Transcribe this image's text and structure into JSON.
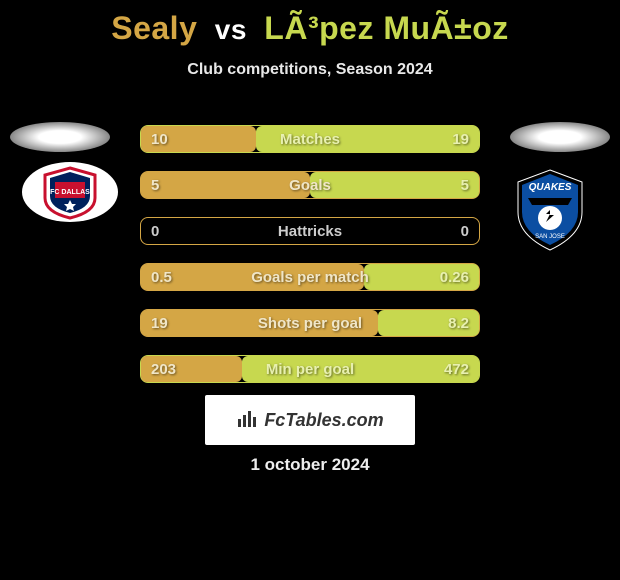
{
  "title": {
    "left": "Sealy",
    "vs": "vs",
    "right": "LÃ³pez MuÃ±oz"
  },
  "subtitle": "Club competitions, Season 2024",
  "colors": {
    "left": "#d4a645",
    "right": "#c7d84f",
    "left_border": "#d4a645",
    "right_border": "#c7d84f"
  },
  "stats": [
    {
      "label": "Matches",
      "left_val": "10",
      "right_val": "19",
      "left_pct": 34,
      "right_pct": 66,
      "label_color_left": "#f0e6c8",
      "label_color_right": "#e8f0b0"
    },
    {
      "label": "Goals",
      "left_val": "5",
      "right_val": "5",
      "left_pct": 50,
      "right_pct": 50,
      "label_color_left": "#f0e6c8",
      "label_color_right": "#e8f0b0"
    },
    {
      "label": "Hattricks",
      "left_val": "0",
      "right_val": "0",
      "left_pct": 0,
      "right_pct": 0,
      "label_color_left": "#ccc",
      "label_color_right": "#ccc"
    },
    {
      "label": "Goals per match",
      "left_val": "0.5",
      "right_val": "0.26",
      "left_pct": 66,
      "right_pct": 34,
      "label_color_left": "#f0e6c8",
      "label_color_right": "#e8f0b0"
    },
    {
      "label": "Shots per goal",
      "left_val": "19",
      "right_val": "8.2",
      "left_pct": 70,
      "right_pct": 30,
      "label_color_left": "#f0e6c8",
      "label_color_right": "#e8f0b0"
    },
    {
      "label": "Min per goal",
      "left_val": "203",
      "right_val": "472",
      "left_pct": 30,
      "right_pct": 70,
      "label_color_left": "#f0e6c8",
      "label_color_right": "#e8f0b0"
    }
  ],
  "crest_left": {
    "name": "fc-dallas",
    "bg": "#ffffff",
    "accent1": "#c8102e",
    "accent2": "#00205b"
  },
  "crest_right": {
    "name": "sj-earthquakes",
    "bg": "#000000",
    "accent1": "#0b4ea2",
    "accent2": "#ffffff"
  },
  "watermark": "FcTables.com",
  "date": "1 october 2024"
}
